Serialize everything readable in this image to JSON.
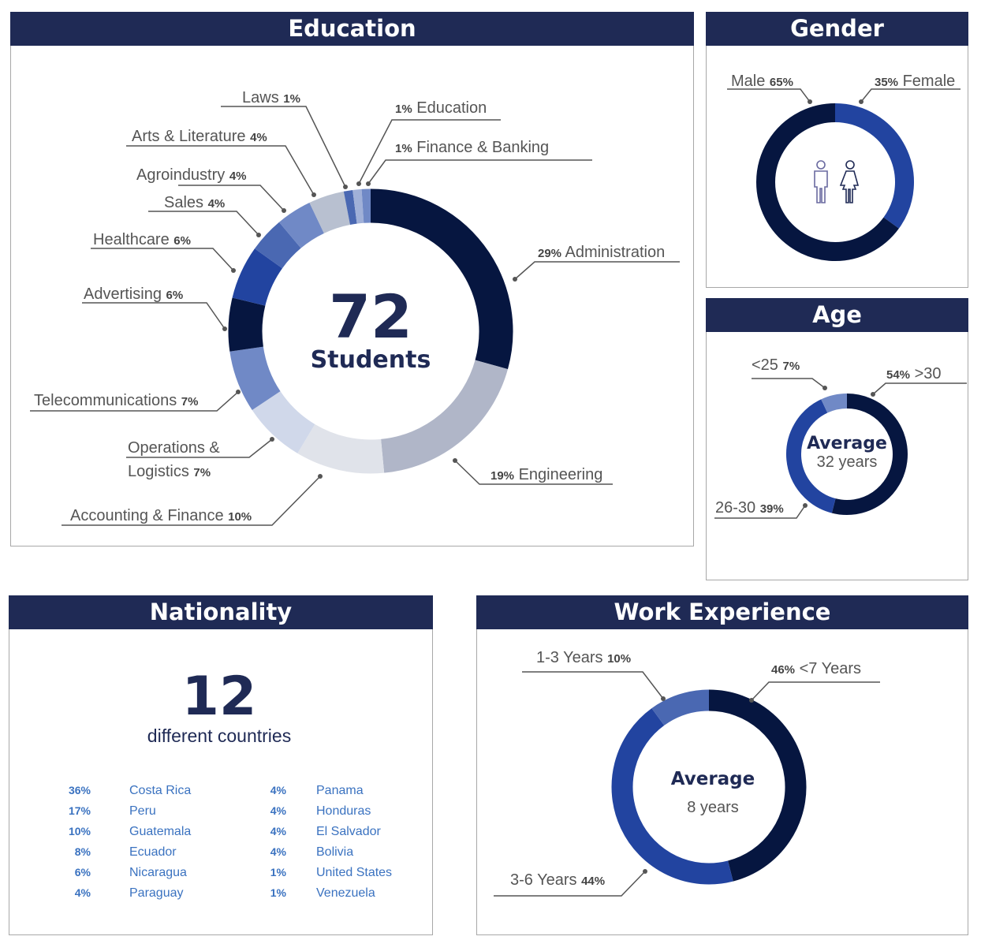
{
  "panels": {
    "education": "Education",
    "gender": "Gender",
    "age": "Age",
    "nationality": "Nationality",
    "work": "Work Experience"
  },
  "education_center": {
    "number": "72",
    "label": "Students"
  },
  "age_center": {
    "title": "Average",
    "value": "32 years"
  },
  "work_center": {
    "title": "Average",
    "value": "8 years"
  },
  "nationality": {
    "number": "12",
    "label": "different countries",
    "rows": [
      {
        "pct": "36%",
        "country": "Costa Rica"
      },
      {
        "pct": "17%",
        "country": "Peru"
      },
      {
        "pct": "10%",
        "country": "Guatemala"
      },
      {
        "pct": "8%",
        "country": "Ecuador"
      },
      {
        "pct": "6%",
        "country": "Nicaragua"
      },
      {
        "pct": "4%",
        "country": "Paraguay"
      },
      {
        "pct": "4%",
        "country": "Panama"
      },
      {
        "pct": "4%",
        "country": "Honduras"
      },
      {
        "pct": "4%",
        "country": "El Salvador"
      },
      {
        "pct": "4%",
        "country": "Bolivia"
      },
      {
        "pct": "1%",
        "country": "United States"
      },
      {
        "pct": "1%",
        "country": "Venezuela"
      }
    ]
  },
  "chart_data": [
    {
      "type": "pie",
      "title": "Education",
      "donut": true,
      "segments": [
        {
          "label": "Administration",
          "pct": "29%",
          "value": 29,
          "color": "#061640"
        },
        {
          "label": "Engineering",
          "pct": "19%",
          "value": 19,
          "color": "#b0b6c8"
        },
        {
          "label": "Accounting & Finance",
          "pct": "10%",
          "value": 10,
          "color": "#e0e3ea"
        },
        {
          "label": "Operations & Logistics",
          "pct": "7%",
          "value": 7,
          "color": "#d0d8ea"
        },
        {
          "label": "Telecommunications",
          "pct": "7%",
          "value": 7,
          "color": "#7089c6"
        },
        {
          "label": "Advertising",
          "pct": "6%",
          "value": 6,
          "color": "#061640"
        },
        {
          "label": "Healthcare",
          "pct": "6%",
          "value": 6,
          "color": "#2244a0"
        },
        {
          "label": "Sales",
          "pct": "4%",
          "value": 4,
          "color": "#4a68b2"
        },
        {
          "label": "Agroindustry",
          "pct": "4%",
          "value": 4,
          "color": "#7089c6"
        },
        {
          "label": "Arts & Literature",
          "pct": "4%",
          "value": 4,
          "color": "#b8c0d0"
        },
        {
          "label": "Laws",
          "pct": "1%",
          "value": 1,
          "color": "#4a68b2"
        },
        {
          "label": "Education",
          "pct": "1%",
          "value": 1,
          "color": "#a0b0d8"
        },
        {
          "label": "Finance & Banking",
          "pct": "1%",
          "value": 1,
          "color": "#7089c6"
        }
      ]
    },
    {
      "type": "pie",
      "title": "Gender",
      "donut": true,
      "segments": [
        {
          "label": "Female",
          "pct": "35%",
          "value": 35,
          "color": "#2244a0"
        },
        {
          "label": "Male",
          "pct": "65%",
          "value": 65,
          "color": "#061640"
        }
      ]
    },
    {
      "type": "pie",
      "title": "Age",
      "donut": true,
      "segments": [
        {
          "label": ">30",
          "pct": "54%",
          "value": 54,
          "color": "#061640"
        },
        {
          "label": "26-30",
          "pct": "39%",
          "value": 39,
          "color": "#2244a0"
        },
        {
          "label": "<25",
          "pct": "7%",
          "value": 7,
          "color": "#7089c6"
        }
      ]
    },
    {
      "type": "pie",
      "title": "Work Experience",
      "donut": true,
      "segments": [
        {
          "label": "<7 Years",
          "pct": "46%",
          "value": 46,
          "color": "#061640"
        },
        {
          "label": "3-6 Years",
          "pct": "44%",
          "value": 44,
          "color": "#2244a0"
        },
        {
          "label": "1-3 Years",
          "pct": "10%",
          "value": 10,
          "color": "#4a68b2"
        }
      ]
    }
  ]
}
